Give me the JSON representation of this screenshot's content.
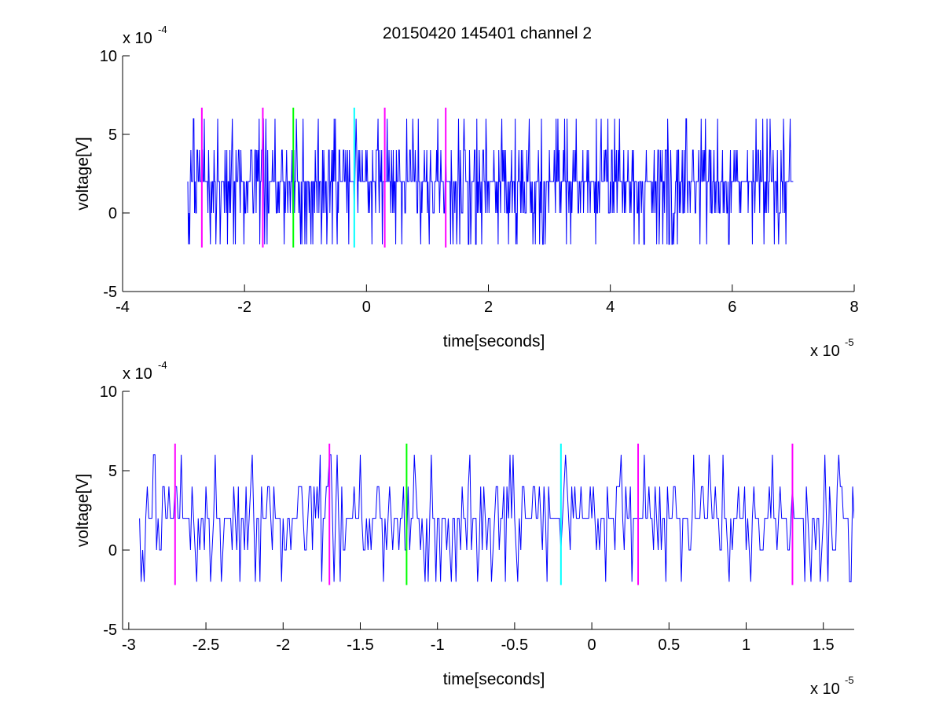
{
  "figure": {
    "title": "20150420 145401 channel 2"
  },
  "colors": {
    "signal": "#0000ff",
    "magenta": "#ff00ff",
    "green": "#00ff00",
    "cyan": "#00ffff",
    "axes": "#000000"
  },
  "chart_data": [
    {
      "type": "line",
      "title": "20150420 145401 channel 2",
      "xlabel": "time[seconds]",
      "ylabel": "voltage[V]",
      "x_multiplier": {
        "base": "x 10",
        "exp": "-5"
      },
      "y_multiplier": {
        "base": "x 10",
        "exp": "-4"
      },
      "xlim": [
        -4,
        8
      ],
      "ylim": [
        -5,
        10
      ],
      "xticks": [
        -4,
        -2,
        0,
        2,
        4,
        6,
        8
      ],
      "yticks": [
        -5,
        0,
        5,
        10
      ],
      "grid": false,
      "series": [
        {
          "color": "#0000ff",
          "x_range": [
            -2.93,
            7.0
          ],
          "sample_step": 0.01,
          "levels": [
            -2,
            0,
            2,
            4,
            6
          ],
          "baseline_level": 2,
          "seed": 7
        }
      ],
      "markers": [
        {
          "x": -2.7,
          "color": "#ff00ff",
          "ymin": -2.2,
          "ymax": 6.7
        },
        {
          "x": -1.7,
          "color": "#ff00ff",
          "ymin": -2.2,
          "ymax": 6.7
        },
        {
          "x": -1.2,
          "color": "#00ff00",
          "ymin": -2.2,
          "ymax": 6.7
        },
        {
          "x": -0.2,
          "color": "#00ffff",
          "ymin": -2.2,
          "ymax": 6.7
        },
        {
          "x": 0.3,
          "color": "#ff00ff",
          "ymin": -2.2,
          "ymax": 6.7
        },
        {
          "x": 1.3,
          "color": "#ff00ff",
          "ymin": -2.2,
          "ymax": 6.7
        }
      ]
    },
    {
      "type": "line",
      "title": "",
      "xlabel": "time[seconds]",
      "ylabel": "voltage[V]",
      "x_multiplier": {
        "base": "x 10",
        "exp": "-5"
      },
      "y_multiplier": {
        "base": "x 10",
        "exp": "-4"
      },
      "xlim": [
        -3.04,
        1.7
      ],
      "ylim": [
        -5,
        10
      ],
      "xticks": [
        -3,
        -2.5,
        -2,
        -1.5,
        -1,
        -0.5,
        0,
        0.5,
        1,
        1.5
      ],
      "xticklabels": [
        "-3",
        "-2.5",
        "-2",
        "-1.5",
        "-1",
        "-0.5",
        "0",
        "0.5",
        "1",
        "1.5"
      ],
      "yticks": [
        -5,
        0,
        5,
        10
      ],
      "grid": false,
      "series": [
        {
          "color": "#0000ff",
          "x_range": [
            -2.93,
            1.7
          ],
          "sample_step": 0.01,
          "levels": [
            -2,
            0,
            2,
            4,
            6
          ],
          "baseline_level": 2,
          "seed": 7
        }
      ],
      "markers": [
        {
          "x": -2.7,
          "color": "#ff00ff",
          "ymin": -2.2,
          "ymax": 6.7
        },
        {
          "x": -1.7,
          "color": "#ff00ff",
          "ymin": -2.2,
          "ymax": 6.7
        },
        {
          "x": -1.2,
          "color": "#00ff00",
          "ymin": -2.2,
          "ymax": 6.7
        },
        {
          "x": -0.2,
          "color": "#00ffff",
          "ymin": -2.2,
          "ymax": 6.7
        },
        {
          "x": 0.3,
          "color": "#ff00ff",
          "ymin": -2.2,
          "ymax": 6.7
        },
        {
          "x": 1.3,
          "color": "#ff00ff",
          "ymin": -2.2,
          "ymax": 6.7
        }
      ]
    }
  ]
}
